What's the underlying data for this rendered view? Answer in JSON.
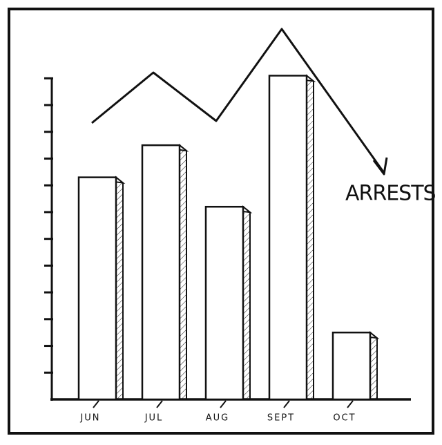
{
  "chart_data": {
    "type": "bar",
    "annotation": "ARRESTS",
    "categories": [
      "JUN",
      "JUL",
      "AUG",
      "SEPT",
      "OCT"
    ],
    "values": [
      8.3,
      9.5,
      7.2,
      12.1,
      2.5
    ],
    "color": "#ffffff",
    "ylim": [
      0,
      12.5
    ],
    "yticks": [
      1,
      2,
      3,
      4,
      5,
      6,
      7,
      8,
      9,
      10,
      11,
      12
    ]
  }
}
